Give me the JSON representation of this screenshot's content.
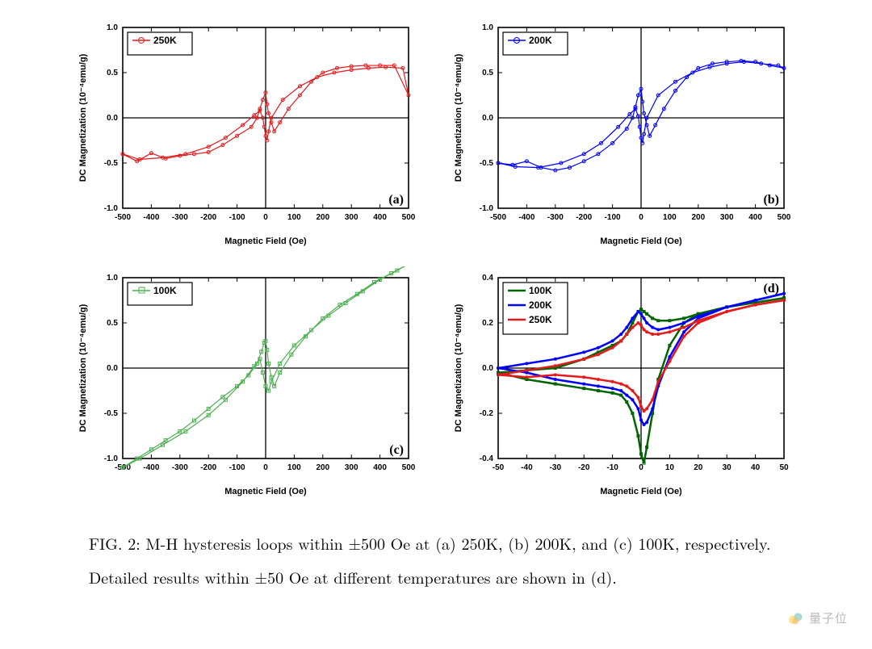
{
  "figure": {
    "caption": "FIG. 2: M-H hysteresis loops within ±500 Oe at (a) 250K, (b) 200K, and (c) 100K, respectively. Detailed results within ±50 Oe at different temperatures are shown in (d).",
    "panels": {
      "a": {
        "type": "scatter-line",
        "panel_label": "(a)",
        "legend": [
          {
            "label": "250K",
            "color": "#e41a1c",
            "marker": "circle"
          }
        ],
        "xlabel": "Magnetic Field (Oe)",
        "ylabel": "DC Magnetization (10⁻⁴emu/g)",
        "xlim": [
          -500,
          500
        ],
        "ylim": [
          -1.0,
          1.0
        ],
        "xticks": [
          -500,
          -400,
          -300,
          -200,
          -100,
          0,
          100,
          200,
          300,
          400,
          500
        ],
        "yticks": [
          -1.0,
          -0.5,
          0.0,
          0.5,
          1.0
        ],
        "label_fontsize": 11,
        "tick_fontsize": 10,
        "legend_fontsize": 12,
        "axis_color": "#000000",
        "tick_color": "#000000",
        "line_width": 1.2,
        "marker_size": 4,
        "marker_fill": "none",
        "background_color": "#ffffff",
        "series": [
          {
            "color": "#e41a1c",
            "x": [
              -500,
              -450,
              -400,
              -350,
              -300,
              -250,
              -200,
              -150,
              -100,
              -50,
              -30,
              -20,
              -10,
              0,
              5,
              10,
              20,
              30,
              50,
              80,
              120,
              160,
              200,
              250,
              300,
              350,
              400,
              450,
              500,
              480,
              420,
              360,
              300,
              240,
              180,
              120,
              60,
              20,
              10,
              5,
              0,
              -5,
              -10,
              -20,
              -40,
              -80,
              -140,
              -200,
              -280,
              -360,
              -440,
              -500
            ],
            "y": [
              -0.4,
              -0.48,
              -0.39,
              -0.45,
              -0.42,
              -0.4,
              -0.38,
              -0.3,
              -0.2,
              -0.1,
              0.0,
              0.1,
              0.2,
              0.28,
              0.15,
              0.05,
              -0.05,
              -0.15,
              -0.05,
              0.1,
              0.25,
              0.4,
              0.5,
              0.55,
              0.57,
              0.58,
              0.58,
              0.58,
              0.25,
              0.55,
              0.56,
              0.55,
              0.53,
              0.5,
              0.45,
              0.35,
              0.2,
              0.0,
              -0.15,
              -0.25,
              -0.2,
              -0.1,
              0.0,
              0.08,
              0.03,
              -0.08,
              -0.22,
              -0.32,
              -0.4,
              -0.44,
              -0.46,
              -0.4
            ]
          }
        ]
      },
      "b": {
        "type": "scatter-line",
        "panel_label": "(b)",
        "legend": [
          {
            "label": "200K",
            "color": "#0000fd",
            "marker": "circle"
          }
        ],
        "xlabel": "Magnetic Field (Oe)",
        "ylabel": "DC Magnetization (10⁻⁴emu/g)",
        "xlim": [
          -500,
          500
        ],
        "ylim": [
          -1.0,
          1.0
        ],
        "xticks": [
          -500,
          -400,
          -300,
          -200,
          -100,
          0,
          100,
          200,
          300,
          400,
          500
        ],
        "yticks": [
          -1.0,
          -0.5,
          0.0,
          0.5,
          1.0
        ],
        "label_fontsize": 11,
        "tick_fontsize": 10,
        "legend_fontsize": 12,
        "axis_color": "#000000",
        "line_width": 1.2,
        "marker_size": 4,
        "marker_fill": "none",
        "background_color": "#ffffff",
        "series": [
          {
            "color": "#0000fd",
            "x": [
              -500,
              -450,
              -400,
              -350,
              -300,
              -250,
              -200,
              -150,
              -100,
              -50,
              -30,
              -20,
              -10,
              0,
              5,
              10,
              20,
              30,
              50,
              80,
              120,
              160,
              200,
              250,
              300,
              350,
              400,
              450,
              500,
              480,
              420,
              360,
              300,
              240,
              180,
              120,
              60,
              20,
              10,
              5,
              0,
              -5,
              -10,
              -20,
              -40,
              -80,
              -140,
              -200,
              -280,
              -360,
              -440,
              -500
            ],
            "y": [
              -0.5,
              -0.52,
              -0.48,
              -0.55,
              -0.58,
              -0.55,
              -0.48,
              -0.4,
              -0.28,
              -0.12,
              0.0,
              0.12,
              0.25,
              0.32,
              0.18,
              0.05,
              -0.08,
              -0.2,
              -0.08,
              0.1,
              0.3,
              0.45,
              0.55,
              0.6,
              0.62,
              0.63,
              0.62,
              0.58,
              0.55,
              0.58,
              0.6,
              0.62,
              0.6,
              0.56,
              0.5,
              0.4,
              0.25,
              0.0,
              -0.18,
              -0.28,
              -0.22,
              -0.1,
              0.02,
              0.1,
              0.04,
              -0.1,
              -0.28,
              -0.4,
              -0.5,
              -0.55,
              -0.54,
              -0.5
            ]
          }
        ]
      },
      "c": {
        "type": "scatter-line",
        "panel_label": "(c)",
        "legend": [
          {
            "label": "100K",
            "color": "#4caf50",
            "marker": "square"
          }
        ],
        "xlabel": "Magnetic Field (Oe)",
        "ylabel": "DC Magnetization (10⁻⁴emu/g)",
        "xlim": [
          -500,
          500
        ],
        "ylim": [
          -1.0,
          1.0
        ],
        "xticks": [
          -500,
          -400,
          -300,
          -200,
          -100,
          0,
          100,
          200,
          300,
          400,
          500
        ],
        "yticks": [
          -1.0,
          -0.5,
          0.0,
          0.5,
          1.0
        ],
        "label_fontsize": 11,
        "tick_fontsize": 10,
        "legend_fontsize": 12,
        "axis_color": "#000000",
        "line_width": 1.2,
        "marker_size": 4,
        "marker_fill": "none",
        "background_color": "#ffffff",
        "series": [
          {
            "color": "#4caf50",
            "x": [
              -500,
              -450,
              -400,
              -350,
              -300,
              -250,
              -200,
              -150,
              -100,
              -60,
              -30,
              -15,
              -5,
              0,
              5,
              10,
              20,
              30,
              50,
              90,
              140,
              200,
              260,
              320,
              380,
              440,
              500,
              460,
              400,
              340,
              280,
              220,
              160,
              100,
              50,
              20,
              10,
              0,
              -10,
              -20,
              -40,
              -80,
              -140,
              -200,
              -280,
              -360,
              -440,
              -500
            ],
            "y": [
              -1.1,
              -1.0,
              -0.9,
              -0.8,
              -0.7,
              -0.58,
              -0.45,
              -0.32,
              -0.2,
              -0.08,
              0.05,
              0.18,
              0.28,
              0.3,
              0.2,
              0.05,
              -0.1,
              -0.2,
              -0.05,
              0.15,
              0.35,
              0.55,
              0.7,
              0.82,
              0.95,
              1.05,
              1.15,
              1.08,
              0.98,
              0.85,
              0.72,
              0.58,
              0.42,
              0.25,
              0.05,
              -0.15,
              -0.25,
              -0.2,
              -0.05,
              0.1,
              0.02,
              -0.15,
              -0.35,
              -0.52,
              -0.7,
              -0.85,
              -1.0,
              -1.1
            ]
          }
        ]
      },
      "d": {
        "type": "line-multi",
        "panel_label": "(d)",
        "legend": [
          {
            "label": "100K",
            "color": "#006400",
            "line_width": 2.5
          },
          {
            "label": "200K",
            "color": "#0000fd",
            "line_width": 2.5
          },
          {
            "label": "250K",
            "color": "#e41a1c",
            "line_width": 2.5
          }
        ],
        "xlabel": "Magnetic Field (Oe)",
        "ylabel": "DC Magnetization (10⁻⁴emu/g)",
        "xlim": [
          -50,
          50
        ],
        "ylim": [
          -0.4,
          0.4
        ],
        "xticks": [
          -50,
          -40,
          -30,
          -20,
          -10,
          0,
          10,
          20,
          30,
          40,
          50
        ],
        "yticks": [
          -0.4,
          -0.2,
          0.0,
          0.2,
          0.4
        ],
        "label_fontsize": 11,
        "tick_fontsize": 10,
        "legend_fontsize": 12,
        "axis_color": "#000000",
        "marker_size": 3,
        "marker_fill": "none",
        "background_color": "#ffffff",
        "series": [
          {
            "color": "#006400",
            "line_width": 2.5,
            "marker": "square",
            "x_up": [
              -50,
              -40,
              -30,
              -20,
              -15,
              -10,
              -7,
              -5,
              -3,
              -1,
              0,
              1,
              2,
              4,
              6,
              10,
              15,
              20,
              30,
              40,
              50
            ],
            "y_up": [
              -0.02,
              -0.01,
              0.0,
              0.04,
              0.07,
              0.1,
              0.12,
              0.15,
              0.2,
              0.25,
              0.26,
              0.25,
              0.24,
              0.22,
              0.21,
              0.21,
              0.22,
              0.24,
              0.27,
              0.29,
              0.31
            ],
            "x_down": [
              50,
              40,
              30,
              20,
              15,
              10,
              6,
              4,
              2,
              1,
              0,
              -1,
              -3,
              -5,
              -7,
              -10,
              -15,
              -20,
              -30,
              -40,
              -50
            ],
            "y_down": [
              0.31,
              0.29,
              0.27,
              0.24,
              0.2,
              0.1,
              -0.05,
              -0.2,
              -0.35,
              -0.42,
              -0.38,
              -0.3,
              -0.2,
              -0.15,
              -0.12,
              -0.11,
              -0.1,
              -0.09,
              -0.07,
              -0.05,
              -0.02
            ]
          },
          {
            "color": "#0000fd",
            "line_width": 2.5,
            "marker": "circle",
            "x_up": [
              -50,
              -40,
              -30,
              -20,
              -15,
              -10,
              -7,
              -5,
              -3,
              -1,
              0,
              1,
              2,
              4,
              6,
              10,
              15,
              20,
              30,
              40,
              50
            ],
            "y_up": [
              0.0,
              0.02,
              0.04,
              0.07,
              0.09,
              0.12,
              0.15,
              0.18,
              0.22,
              0.25,
              0.24,
              0.22,
              0.2,
              0.18,
              0.17,
              0.18,
              0.2,
              0.23,
              0.27,
              0.3,
              0.33
            ],
            "x_down": [
              50,
              40,
              30,
              20,
              15,
              10,
              6,
              4,
              2,
              1,
              0,
              -1,
              -3,
              -5,
              -7,
              -10,
              -15,
              -20,
              -30,
              -40,
              -50
            ],
            "y_down": [
              0.33,
              0.3,
              0.27,
              0.22,
              0.16,
              0.05,
              -0.08,
              -0.18,
              -0.24,
              -0.25,
              -0.23,
              -0.18,
              -0.14,
              -0.12,
              -0.1,
              -0.09,
              -0.08,
              -0.07,
              -0.05,
              -0.02,
              0.0
            ]
          },
          {
            "color": "#e41a1c",
            "line_width": 2.5,
            "marker": "circle",
            "x_up": [
              -50,
              -40,
              -30,
              -20,
              -15,
              -10,
              -7,
              -5,
              -3,
              -1,
              0,
              1,
              2,
              4,
              6,
              10,
              15,
              20,
              30,
              40,
              50
            ],
            "y_up": [
              -0.03,
              -0.01,
              0.01,
              0.04,
              0.06,
              0.09,
              0.12,
              0.15,
              0.18,
              0.2,
              0.19,
              0.17,
              0.16,
              0.15,
              0.15,
              0.16,
              0.18,
              0.21,
              0.25,
              0.28,
              0.3
            ],
            "x_down": [
              50,
              40,
              30,
              20,
              15,
              10,
              6,
              4,
              2,
              1,
              0,
              -1,
              -3,
              -5,
              -7,
              -10,
              -15,
              -20,
              -30,
              -40,
              -50
            ],
            "y_down": [
              0.3,
              0.28,
              0.25,
              0.2,
              0.14,
              0.03,
              -0.06,
              -0.14,
              -0.18,
              -0.19,
              -0.17,
              -0.13,
              -0.1,
              -0.08,
              -0.07,
              -0.06,
              -0.05,
              -0.04,
              -0.03,
              -0.04,
              -0.03
            ]
          }
        ]
      }
    }
  },
  "watermark": {
    "text": "量子位",
    "icon_colors": [
      "#f9c200",
      "#f08c00",
      "#2a9d8f"
    ]
  }
}
